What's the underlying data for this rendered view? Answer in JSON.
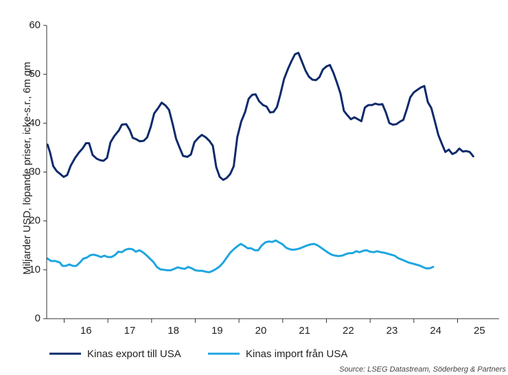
{
  "chart_data": {
    "type": "line",
    "ylabel": "Miljarder USD, löpande priser, icke-s.r., 6m gm",
    "source": "Source: LSEG Datastream, Söderberg & Partners",
    "ylim": [
      0,
      60
    ],
    "yticks": [
      0,
      10,
      20,
      30,
      40,
      50,
      60
    ],
    "xlim": [
      2015.6,
      2025.95
    ],
    "xtick_labels": [
      {
        "label": "16",
        "value": 2016.5
      },
      {
        "label": "17",
        "value": 2017.5
      },
      {
        "label": "18",
        "value": 2018.5
      },
      {
        "label": "19",
        "value": 2019.5
      },
      {
        "label": "20",
        "value": 2020.5
      },
      {
        "label": "21",
        "value": 2021.5
      },
      {
        "label": "22",
        "value": 2022.5
      },
      {
        "label": "23",
        "value": 2023.5
      },
      {
        "label": "24",
        "value": 2024.5
      },
      {
        "label": "25",
        "value": 2025.5
      }
    ],
    "colors": {
      "export": "#0d2a6b",
      "import": "#1ea6e0",
      "axis": "#333333"
    },
    "series": [
      {
        "name": "Kinas export till USA",
        "color": "#0d2a6b",
        "points": [
          [
            2015.62,
            35.6
          ],
          [
            2015.68,
            33.9
          ],
          [
            2015.75,
            31.2
          ],
          [
            2015.83,
            30.2
          ],
          [
            2015.91,
            29.6
          ],
          [
            2015.99,
            29.0
          ],
          [
            2016.07,
            29.4
          ],
          [
            2016.15,
            31.3
          ],
          [
            2016.25,
            32.9
          ],
          [
            2016.34,
            34.0
          ],
          [
            2016.42,
            34.8
          ],
          [
            2016.5,
            35.9
          ],
          [
            2016.57,
            35.9
          ],
          [
            2016.65,
            33.5
          ],
          [
            2016.75,
            32.7
          ],
          [
            2016.83,
            32.4
          ],
          [
            2016.9,
            32.3
          ],
          [
            2016.98,
            32.9
          ],
          [
            2017.06,
            36.1
          ],
          [
            2017.15,
            37.4
          ],
          [
            2017.25,
            38.5
          ],
          [
            2017.32,
            39.7
          ],
          [
            2017.42,
            39.8
          ],
          [
            2017.5,
            38.6
          ],
          [
            2017.57,
            37.0
          ],
          [
            2017.65,
            36.7
          ],
          [
            2017.73,
            36.3
          ],
          [
            2017.82,
            36.4
          ],
          [
            2017.9,
            37.1
          ],
          [
            2017.98,
            39.2
          ],
          [
            2018.06,
            42.0
          ],
          [
            2018.15,
            43.1
          ],
          [
            2018.23,
            44.2
          ],
          [
            2018.32,
            43.6
          ],
          [
            2018.4,
            42.7
          ],
          [
            2018.48,
            39.9
          ],
          [
            2018.56,
            36.8
          ],
          [
            2018.64,
            35.0
          ],
          [
            2018.72,
            33.3
          ],
          [
            2018.82,
            33.1
          ],
          [
            2018.9,
            33.6
          ],
          [
            2018.98,
            36.1
          ],
          [
            2019.07,
            37.0
          ],
          [
            2019.15,
            37.6
          ],
          [
            2019.24,
            37.1
          ],
          [
            2019.32,
            36.4
          ],
          [
            2019.4,
            35.4
          ],
          [
            2019.48,
            31.0
          ],
          [
            2019.56,
            29.0
          ],
          [
            2019.64,
            28.4
          ],
          [
            2019.72,
            28.8
          ],
          [
            2019.8,
            29.6
          ],
          [
            2019.88,
            31.2
          ],
          [
            2019.96,
            37.1
          ],
          [
            2020.05,
            40.3
          ],
          [
            2020.14,
            42.3
          ],
          [
            2020.22,
            45.0
          ],
          [
            2020.3,
            45.8
          ],
          [
            2020.38,
            45.9
          ],
          [
            2020.46,
            44.5
          ],
          [
            2020.55,
            43.7
          ],
          [
            2020.63,
            43.4
          ],
          [
            2020.71,
            42.2
          ],
          [
            2020.79,
            42.3
          ],
          [
            2020.87,
            43.3
          ],
          [
            2020.95,
            46.0
          ],
          [
            2021.03,
            49.0
          ],
          [
            2021.12,
            51.1
          ],
          [
            2021.2,
            52.7
          ],
          [
            2021.28,
            54.1
          ],
          [
            2021.36,
            54.4
          ],
          [
            2021.44,
            52.6
          ],
          [
            2021.52,
            50.8
          ],
          [
            2021.6,
            49.5
          ],
          [
            2021.68,
            48.9
          ],
          [
            2021.76,
            48.8
          ],
          [
            2021.84,
            49.4
          ],
          [
            2021.92,
            51.0
          ],
          [
            2022.0,
            51.6
          ],
          [
            2022.08,
            51.9
          ],
          [
            2022.16,
            50.3
          ],
          [
            2022.24,
            48.3
          ],
          [
            2022.32,
            46.1
          ],
          [
            2022.4,
            42.5
          ],
          [
            2022.48,
            41.6
          ],
          [
            2022.56,
            40.8
          ],
          [
            2022.64,
            41.2
          ],
          [
            2022.72,
            40.8
          ],
          [
            2022.8,
            40.4
          ],
          [
            2022.88,
            43.2
          ],
          [
            2022.96,
            43.7
          ],
          [
            2023.04,
            43.7
          ],
          [
            2023.12,
            44.0
          ],
          [
            2023.2,
            43.8
          ],
          [
            2023.28,
            43.9
          ],
          [
            2023.36,
            42.2
          ],
          [
            2023.44,
            40.0
          ],
          [
            2023.52,
            39.7
          ],
          [
            2023.6,
            39.8
          ],
          [
            2023.68,
            40.3
          ],
          [
            2023.76,
            40.7
          ],
          [
            2023.84,
            42.9
          ],
          [
            2023.92,
            45.3
          ],
          [
            2024.0,
            46.3
          ],
          [
            2024.08,
            46.8
          ],
          [
            2024.16,
            47.3
          ],
          [
            2024.24,
            47.6
          ],
          [
            2024.32,
            44.3
          ],
          [
            2024.4,
            43.1
          ],
          [
            2024.48,
            40.4
          ],
          [
            2024.56,
            37.6
          ],
          [
            2024.64,
            35.8
          ],
          [
            2024.72,
            34.1
          ],
          [
            2024.8,
            34.6
          ],
          [
            2024.88,
            33.7
          ],
          [
            2024.96,
            34.0
          ],
          [
            2025.04,
            34.8
          ],
          [
            2025.12,
            34.2
          ],
          [
            2025.2,
            34.3
          ],
          [
            2025.28,
            34.1
          ],
          [
            2025.36,
            33.2
          ]
        ]
      },
      {
        "name": "Kinas import från USA",
        "color": "#1ea6e0",
        "points": [
          [
            2015.62,
            12.3
          ],
          [
            2015.7,
            11.8
          ],
          [
            2015.8,
            11.8
          ],
          [
            2015.9,
            11.5
          ],
          [
            2015.96,
            10.8
          ],
          [
            2016.04,
            10.8
          ],
          [
            2016.12,
            11.1
          ],
          [
            2016.2,
            10.8
          ],
          [
            2016.28,
            10.8
          ],
          [
            2016.36,
            11.5
          ],
          [
            2016.44,
            12.3
          ],
          [
            2016.52,
            12.5
          ],
          [
            2016.6,
            13.0
          ],
          [
            2016.68,
            13.1
          ],
          [
            2016.76,
            12.9
          ],
          [
            2016.84,
            12.6
          ],
          [
            2016.92,
            12.9
          ],
          [
            2017.0,
            12.6
          ],
          [
            2017.08,
            12.6
          ],
          [
            2017.16,
            13.0
          ],
          [
            2017.24,
            13.7
          ],
          [
            2017.32,
            13.6
          ],
          [
            2017.4,
            14.1
          ],
          [
            2017.48,
            14.3
          ],
          [
            2017.56,
            14.2
          ],
          [
            2017.64,
            13.7
          ],
          [
            2017.72,
            14.0
          ],
          [
            2017.8,
            13.6
          ],
          [
            2017.88,
            13.0
          ],
          [
            2017.96,
            12.3
          ],
          [
            2018.04,
            11.6
          ],
          [
            2018.12,
            10.6
          ],
          [
            2018.2,
            10.1
          ],
          [
            2018.28,
            10.0
          ],
          [
            2018.36,
            9.9
          ],
          [
            2018.44,
            9.9
          ],
          [
            2018.52,
            10.2
          ],
          [
            2018.6,
            10.5
          ],
          [
            2018.68,
            10.3
          ],
          [
            2018.76,
            10.2
          ],
          [
            2018.84,
            10.6
          ],
          [
            2018.92,
            10.3
          ],
          [
            2019.0,
            9.9
          ],
          [
            2019.08,
            9.8
          ],
          [
            2019.16,
            9.8
          ],
          [
            2019.24,
            9.6
          ],
          [
            2019.32,
            9.5
          ],
          [
            2019.4,
            9.8
          ],
          [
            2019.48,
            10.2
          ],
          [
            2019.56,
            10.7
          ],
          [
            2019.64,
            11.5
          ],
          [
            2019.72,
            12.5
          ],
          [
            2019.8,
            13.5
          ],
          [
            2019.88,
            14.2
          ],
          [
            2019.96,
            14.8
          ],
          [
            2020.04,
            15.3
          ],
          [
            2020.12,
            14.9
          ],
          [
            2020.2,
            14.4
          ],
          [
            2020.28,
            14.4
          ],
          [
            2020.36,
            14.0
          ],
          [
            2020.44,
            14.0
          ],
          [
            2020.52,
            15.0
          ],
          [
            2020.6,
            15.6
          ],
          [
            2020.68,
            15.8
          ],
          [
            2020.76,
            15.7
          ],
          [
            2020.84,
            16.0
          ],
          [
            2020.92,
            15.6
          ],
          [
            2021.0,
            15.2
          ],
          [
            2021.08,
            14.5
          ],
          [
            2021.16,
            14.2
          ],
          [
            2021.24,
            14.1
          ],
          [
            2021.32,
            14.2
          ],
          [
            2021.4,
            14.4
          ],
          [
            2021.48,
            14.7
          ],
          [
            2021.56,
            15.0
          ],
          [
            2021.64,
            15.2
          ],
          [
            2021.72,
            15.3
          ],
          [
            2021.8,
            15.0
          ],
          [
            2021.88,
            14.5
          ],
          [
            2021.96,
            14.0
          ],
          [
            2022.04,
            13.5
          ],
          [
            2022.12,
            13.1
          ],
          [
            2022.2,
            12.9
          ],
          [
            2022.28,
            12.8
          ],
          [
            2022.36,
            12.9
          ],
          [
            2022.44,
            13.2
          ],
          [
            2022.52,
            13.4
          ],
          [
            2022.6,
            13.4
          ],
          [
            2022.68,
            13.8
          ],
          [
            2022.76,
            13.6
          ],
          [
            2022.84,
            13.9
          ],
          [
            2022.92,
            14.0
          ],
          [
            2023.0,
            13.7
          ],
          [
            2023.08,
            13.6
          ],
          [
            2023.16,
            13.8
          ],
          [
            2023.24,
            13.6
          ],
          [
            2023.32,
            13.5
          ],
          [
            2023.4,
            13.3
          ],
          [
            2023.48,
            13.1
          ],
          [
            2023.56,
            12.9
          ],
          [
            2023.64,
            12.4
          ],
          [
            2023.72,
            12.1
          ],
          [
            2023.8,
            11.8
          ],
          [
            2023.88,
            11.5
          ],
          [
            2023.96,
            11.3
          ],
          [
            2024.04,
            11.1
          ],
          [
            2024.12,
            10.9
          ],
          [
            2024.2,
            10.6
          ],
          [
            2024.28,
            10.3
          ],
          [
            2024.36,
            10.3
          ],
          [
            2024.44,
            10.6
          ]
        ]
      }
    ]
  }
}
